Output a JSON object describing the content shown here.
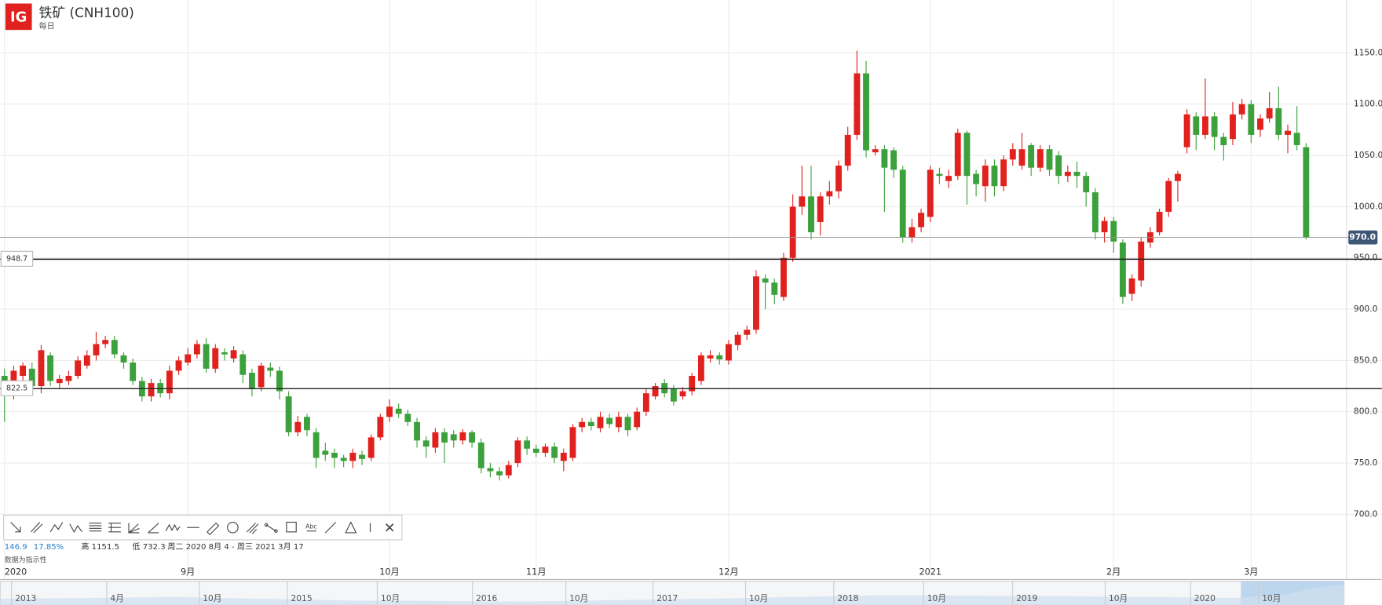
{
  "header": {
    "logo": "IG",
    "title": "铁矿 (CNH100)",
    "subtitle": "每日"
  },
  "chart_data": {
    "type": "candlestick",
    "up_color": "#e0211d",
    "down_color": "#3ca03c",
    "categories": [
      "2020",
      null,
      null,
      null,
      null,
      null,
      null,
      null,
      null,
      null,
      null,
      null,
      null,
      null,
      null,
      null,
      null,
      null,
      null,
      null,
      "9月",
      null,
      null,
      null,
      null,
      null,
      null,
      null,
      null,
      null,
      null,
      null,
      null,
      null,
      null,
      null,
      null,
      null,
      null,
      null,
      null,
      null,
      "10月",
      null,
      null,
      null,
      null,
      null,
      null,
      null,
      null,
      null,
      null,
      null,
      null,
      null,
      null,
      null,
      "11月",
      null,
      null,
      null,
      null,
      null,
      null,
      null,
      null,
      null,
      null,
      null,
      null,
      null,
      null,
      null,
      null,
      null,
      null,
      null,
      null,
      "12月",
      null,
      null,
      null,
      null,
      null,
      null,
      null,
      null,
      null,
      null,
      null,
      null,
      null,
      null,
      null,
      null,
      null,
      null,
      null,
      null,
      null,
      "2021",
      null,
      null,
      null,
      null,
      null,
      null,
      null,
      null,
      null,
      null,
      null,
      null,
      null,
      null,
      null,
      null,
      null,
      null,
      null,
      "2月",
      null,
      null,
      null,
      null,
      null,
      null,
      null,
      null,
      null,
      null,
      null,
      null,
      null,
      null,
      "3月",
      null,
      null,
      null,
      null,
      null,
      null
    ],
    "open": [
      835,
      820,
      835,
      842,
      825,
      855,
      828,
      830,
      835,
      845,
      855,
      866,
      870,
      855,
      848,
      830,
      815,
      828,
      818,
      840,
      848,
      856,
      866,
      842,
      858,
      852,
      856,
      838,
      824,
      843,
      840,
      815,
      780,
      795,
      780,
      762,
      760,
      755,
      752,
      758,
      755,
      775,
      795,
      803,
      798,
      790,
      772,
      765,
      780,
      778,
      772,
      780,
      770,
      745,
      742,
      738,
      750,
      772,
      764,
      760,
      766,
      752,
      755,
      785,
      790,
      784,
      794,
      785,
      795,
      785,
      800,
      815,
      828,
      822,
      815,
      820,
      830,
      852,
      855,
      850,
      865,
      875,
      880,
      930,
      926,
      912,
      950,
      1000,
      1010,
      985,
      1010,
      1015,
      1040,
      1070,
      1130,
      1053,
      1056,
      1055,
      1036,
      970,
      980,
      990,
      1032,
      1025,
      1030,
      1072,
      1032,
      1020,
      1040,
      1020,
      1046,
      1040,
      1060,
      1038,
      1056,
      1050,
      1030,
      1034,
      1030,
      1014,
      975,
      986,
      965,
      915,
      928,
      965,
      975,
      995,
      1025,
      1058,
      1088,
      1070,
      1088,
      1068,
      1066,
      1090,
      1100,
      1075,
      1086,
      1096,
      1070,
      1072,
      1058
    ],
    "high": [
      842,
      845,
      848,
      848,
      865,
      858,
      836,
      840,
      854,
      860,
      878,
      874,
      874,
      858,
      852,
      834,
      832,
      832,
      845,
      854,
      862,
      870,
      872,
      866,
      862,
      864,
      860,
      842,
      848,
      848,
      844,
      820,
      796,
      798,
      784,
      770,
      764,
      758,
      764,
      762,
      778,
      798,
      812,
      808,
      802,
      794,
      776,
      784,
      784,
      782,
      783,
      782,
      774,
      750,
      746,
      752,
      775,
      776,
      768,
      769,
      770,
      764,
      788,
      794,
      794,
      800,
      798,
      800,
      798,
      804,
      822,
      828,
      832,
      826,
      824,
      838,
      858,
      860,
      858,
      870,
      878,
      884,
      938,
      934,
      930,
      955,
      1012,
      1040,
      1040,
      1014,
      1025,
      1045,
      1078,
      1152,
      1142,
      1060,
      1060,
      1058,
      1040,
      988,
      998,
      1040,
      1038,
      1036,
      1076,
      1074,
      1036,
      1046,
      1046,
      1050,
      1062,
      1072,
      1062,
      1060,
      1060,
      1054,
      1040,
      1044,
      1034,
      1018,
      990,
      990,
      968,
      934,
      970,
      980,
      998,
      1028,
      1035,
      1095,
      1092,
      1125,
      1092,
      1072,
      1102,
      1105,
      1104,
      1090,
      1112,
      1117,
      1080,
      1098,
      1062
    ],
    "low": [
      790,
      812,
      830,
      820,
      818,
      825,
      822,
      826,
      832,
      842,
      850,
      862,
      852,
      842,
      826,
      810,
      810,
      814,
      812,
      836,
      845,
      852,
      838,
      838,
      850,
      848,
      828,
      815,
      820,
      834,
      812,
      776,
      776,
      776,
      745,
      752,
      745,
      746,
      745,
      748,
      752,
      772,
      790,
      794,
      786,
      765,
      755,
      760,
      750,
      765,
      768,
      765,
      740,
      736,
      733,
      735,
      746,
      758,
      756,
      756,
      750,
      742,
      752,
      780,
      782,
      780,
      784,
      780,
      776,
      782,
      796,
      812,
      814,
      806,
      812,
      816,
      826,
      848,
      846,
      846,
      860,
      870,
      876,
      900,
      905,
      908,
      946,
      992,
      968,
      972,
      1002,
      1008,
      1035,
      1065,
      1048,
      1050,
      995,
      1028,
      965,
      965,
      975,
      985,
      1022,
      1018,
      1026,
      1002,
      1010,
      1005,
      1010,
      1015,
      1040,
      1036,
      1030,
      1034,
      1030,
      1022,
      1024,
      1018,
      1000,
      968,
      965,
      955,
      905,
      908,
      922,
      960,
      972,
      990,
      1005,
      1052,
      1055,
      1066,
      1055,
      1045,
      1060,
      1085,
      1062,
      1068,
      1082,
      1065,
      1052,
      1055,
      968
    ],
    "close": [
      828,
      840,
      845,
      825,
      860,
      830,
      832,
      835,
      850,
      855,
      866,
      870,
      856,
      848,
      830,
      815,
      828,
      818,
      840,
      850,
      856,
      866,
      842,
      862,
      856,
      860,
      836,
      822,
      845,
      840,
      820,
      780,
      790,
      782,
      755,
      758,
      755,
      752,
      760,
      754,
      775,
      795,
      805,
      798,
      790,
      772,
      766,
      780,
      770,
      772,
      780,
      770,
      745,
      742,
      738,
      748,
      772,
      764,
      760,
      766,
      755,
      760,
      785,
      790,
      786,
      795,
      788,
      795,
      782,
      800,
      818,
      825,
      818,
      810,
      820,
      835,
      855,
      855,
      851,
      866,
      875,
      880,
      932,
      926,
      914,
      950,
      1000,
      1010,
      975,
      1010,
      1015,
      1040,
      1070,
      1130,
      1055,
      1056,
      1038,
      1036,
      970,
      980,
      994,
      1036,
      1030,
      1030,
      1072,
      1030,
      1022,
      1040,
      1020,
      1046,
      1056,
      1056,
      1038,
      1056,
      1036,
      1030,
      1034,
      1030,
      1014,
      975,
      986,
      966,
      912,
      930,
      966,
      975,
      995,
      1025,
      1032,
      1090,
      1070,
      1088,
      1068,
      1060,
      1090,
      1100,
      1070,
      1086,
      1096,
      1070,
      1074,
      1060,
      970
    ],
    "ylim": [
      636.45,
      1201.53
    ],
    "yticks": [
      {
        "value": 700,
        "label": "700.0"
      },
      {
        "value": 750,
        "label": "750.0"
      },
      {
        "value": 800,
        "label": "800.0"
      },
      {
        "value": 850,
        "label": "850.0"
      },
      {
        "value": 900,
        "label": "900.0"
      },
      {
        "value": 950,
        "label": "950.0"
      },
      {
        "value": 1000,
        "label": "1000.0"
      },
      {
        "value": 1050,
        "label": "1050.0"
      },
      {
        "value": 1100,
        "label": "1100.0"
      },
      {
        "value": 1150,
        "label": "1150.0"
      }
    ],
    "grid": true,
    "hlines": [
      948.7,
      822.5
    ],
    "last_price": {
      "value": 970,
      "label": "970.0"
    }
  },
  "toolbar": {
    "text_tool": "Abc"
  },
  "stats": [
    "146.9",
    "17.85%",
    "高 1151.5",
    "低 732.3",
    "周二 2020 8月 4 - 周三 2021 3月 17"
  ],
  "note": "数据为指示性",
  "navigator": {
    "labels": [
      "2013",
      "4月",
      "10月",
      "2015",
      "10月",
      "2016",
      "10月",
      "2017",
      "10月",
      "2018",
      "10月",
      "2019",
      "10月",
      "2020",
      "10月"
    ]
  }
}
